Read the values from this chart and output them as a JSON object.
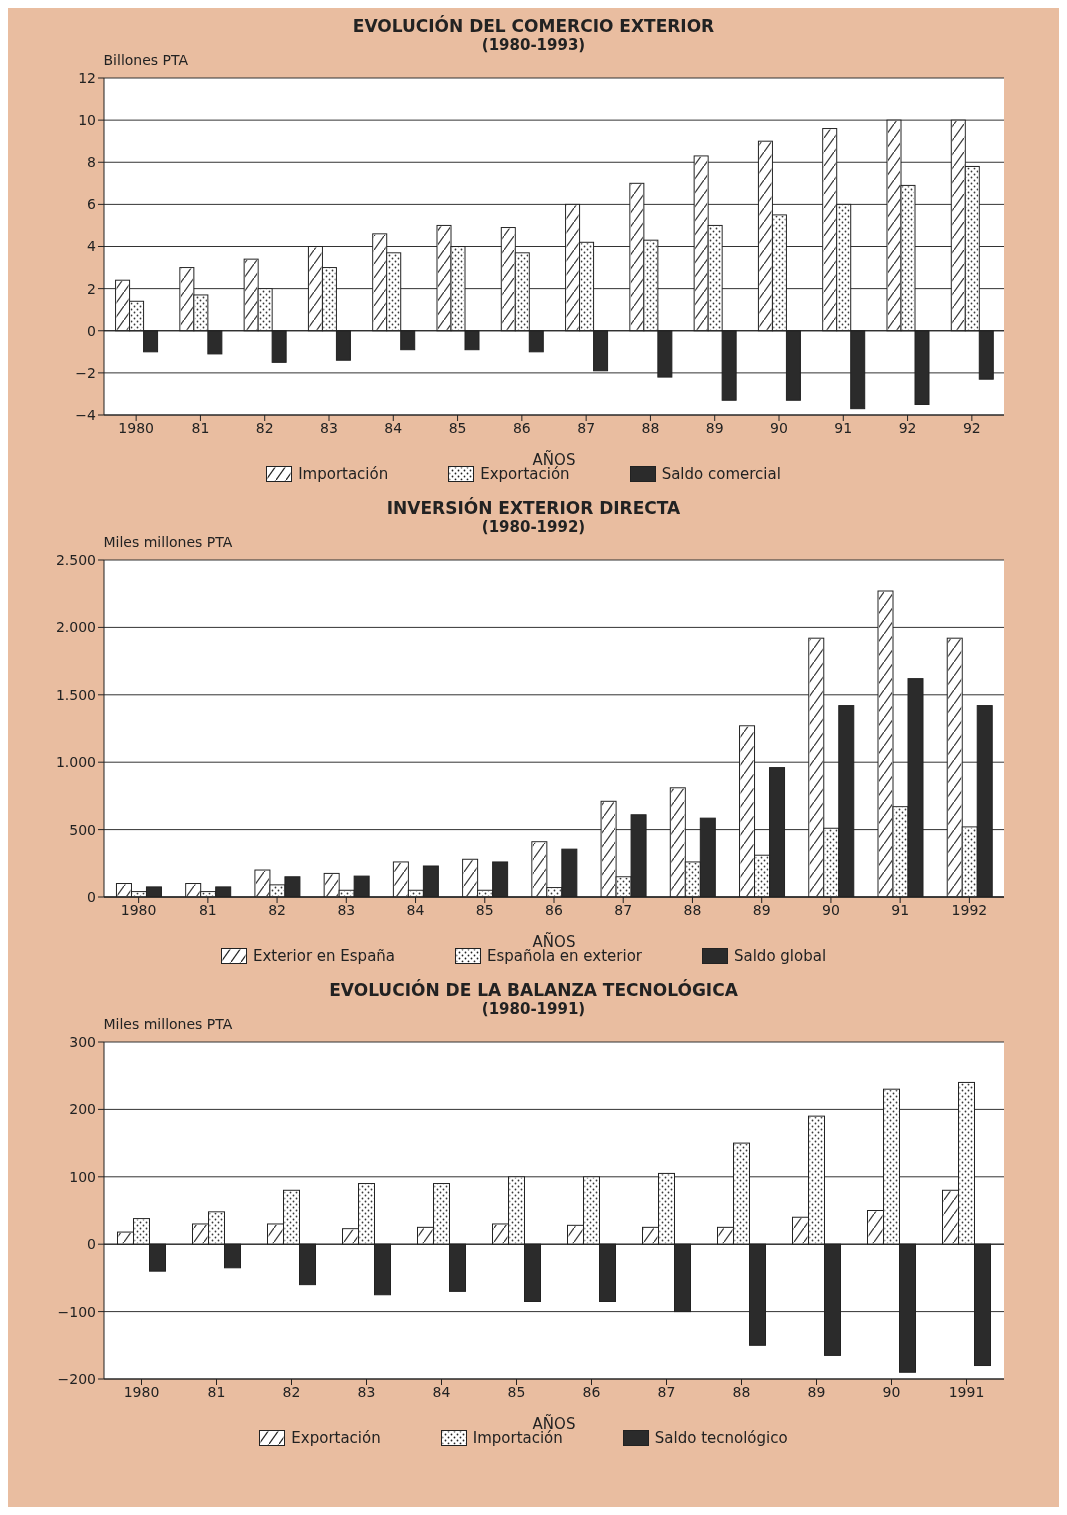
{
  "chart_data": [
    {
      "type": "bar",
      "title": "EVOLUCIÓN DEL COMERCIO EXTERIOR",
      "subtitle": "(1980-1993)",
      "ylabel": "Billones PTA",
      "xlabel": "AÑOS",
      "categories": [
        "1980",
        "81",
        "82",
        "83",
        "84",
        "85",
        "86",
        "87",
        "88",
        "89",
        "90",
        "91",
        "92",
        "92"
      ],
      "series": [
        {
          "name": "Importación",
          "color": "#ffffff",
          "values": [
            2.4,
            3.0,
            3.4,
            4.0,
            4.6,
            5.0,
            4.9,
            6.0,
            7.0,
            8.3,
            9.0,
            9.6,
            10.0,
            10.0
          ]
        },
        {
          "name": "Exportación",
          "color": "#ffffff",
          "values": [
            1.4,
            1.7,
            2.0,
            3.0,
            3.7,
            4.0,
            3.7,
            4.2,
            4.3,
            5.0,
            5.5,
            6.0,
            6.9,
            7.8
          ]
        },
        {
          "name": "Saldo comercial",
          "color": "#2b2b2b",
          "values": [
            -1.0,
            -1.1,
            -1.5,
            -1.4,
            -0.9,
            -0.9,
            -1.0,
            -1.9,
            -2.2,
            -3.3,
            -3.3,
            -3.7,
            -3.5,
            -2.3
          ]
        }
      ],
      "ylim": [
        -4,
        12
      ],
      "yticks": [
        -4,
        -2,
        0,
        2,
        4,
        6,
        8,
        10,
        12
      ],
      "grid": "y",
      "legend": "bottom"
    },
    {
      "type": "bar",
      "title": "INVERSIÓN EXTERIOR DIRECTA",
      "subtitle": "(1980-1992)",
      "ylabel": "Miles millones PTA",
      "xlabel": "AÑOS",
      "categories": [
        "1980",
        "81",
        "82",
        "83",
        "84",
        "85",
        "86",
        "87",
        "88",
        "89",
        "90",
        "91",
        "1992"
      ],
      "series": [
        {
          "name": "Exterior en España",
          "color": "#ffffff",
          "values": [
            100,
            100,
            200,
            175,
            260,
            280,
            410,
            710,
            810,
            1270,
            1920,
            2270,
            1920
          ]
        },
        {
          "name": "Española en exterior",
          "color": "#ffffff",
          "values": [
            40,
            40,
            90,
            50,
            50,
            50,
            70,
            150,
            260,
            310,
            510,
            670,
            520
          ]
        },
        {
          "name": "Saldo global",
          "color": "#2b2b2b",
          "values": [
            75,
            75,
            150,
            155,
            230,
            260,
            355,
            610,
            585,
            960,
            1420,
            1620,
            1420
          ]
        }
      ],
      "ylim": [
        0,
        2500
      ],
      "yticks": [
        0,
        500,
        {
          "value": 1000,
          "label": "1.000"
        },
        {
          "value": 1500,
          "label": "1.500"
        },
        {
          "value": 2000,
          "label": "2.000"
        },
        {
          "value": 2500,
          "label": "2.500"
        }
      ],
      "grid": "y",
      "legend": "bottom"
    },
    {
      "type": "bar",
      "title": "EVOLUCIÓN DE LA BALANZA TECNOLÓGICA",
      "subtitle": "(1980-1991)",
      "ylabel": "Miles millones PTA",
      "xlabel": "AÑOS",
      "categories": [
        "1980",
        "81",
        "82",
        "83",
        "84",
        "85",
        "86",
        "87",
        "88",
        "89",
        "90",
        "1991"
      ],
      "series": [
        {
          "name": "Exportación",
          "color": "#ffffff",
          "values": [
            18,
            30,
            30,
            23,
            25,
            30,
            28,
            25,
            25,
            40,
            50,
            80
          ]
        },
        {
          "name": "Importación",
          "color": "#ffffff",
          "values": [
            38,
            48,
            80,
            90,
            90,
            100,
            100,
            105,
            150,
            190,
            230,
            240
          ]
        },
        {
          "name": "Saldo tecnológico",
          "color": "#2b2b2b",
          "values": [
            -40,
            -35,
            -60,
            -75,
            -70,
            -85,
            -85,
            -100,
            -150,
            -165,
            -190,
            -180
          ]
        }
      ],
      "ylim": [
        -200,
        300
      ],
      "yticks": [
        -200,
        -100,
        0,
        100,
        200,
        300
      ],
      "grid": "y",
      "legend": "bottom"
    }
  ]
}
